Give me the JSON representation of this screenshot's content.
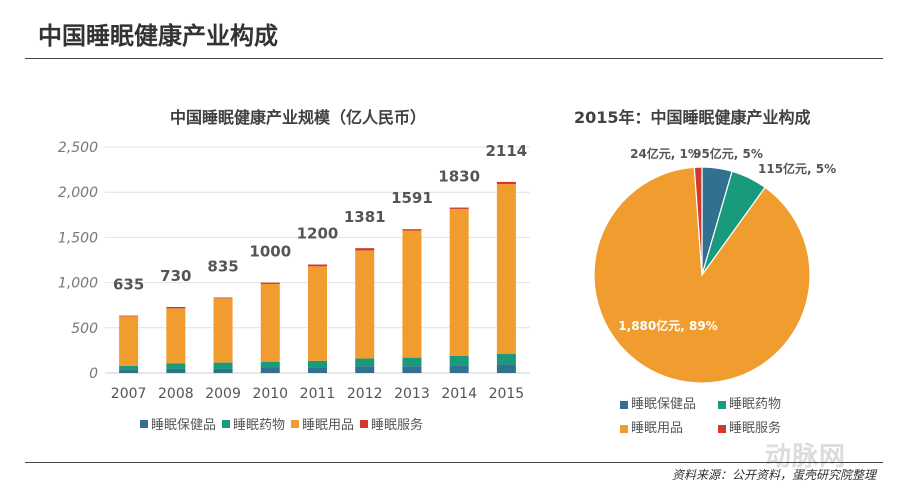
{
  "header": {
    "title": "中国睡眠健康产业构成"
  },
  "footer": {
    "source": "资料来源：公开资料，蛋壳研究院整理",
    "watermark": "动脉网"
  },
  "colors": {
    "health": "#31708f",
    "drug": "#1a9a7c",
    "products": "#f09c2e",
    "service": "#d0392b"
  },
  "chart_data": [
    {
      "type": "bar",
      "stacked": true,
      "title": "中国睡眠健康产业规模（亿人民币）",
      "categories": [
        "2007",
        "2008",
        "2009",
        "2010",
        "2011",
        "2012",
        "2013",
        "2014",
        "2015"
      ],
      "ylim": [
        0,
        2500
      ],
      "yticks": [
        "0",
        "500",
        "1,000",
        "1,500",
        "2,000",
        "2,500"
      ],
      "ytick_values": [
        0,
        500,
        1000,
        1500,
        2000,
        2500
      ],
      "grid": true,
      "legend_position": "bottom",
      "series": [
        {
          "name": "睡眠保健品",
          "color": "#31708f",
          "values": [
            40,
            45,
            45,
            55,
            60,
            75,
            75,
            85,
            95
          ]
        },
        {
          "name": "睡眠药物",
          "color": "#1a9a7c",
          "values": [
            40,
            60,
            70,
            70,
            75,
            85,
            95,
            105,
            115
          ]
        },
        {
          "name": "睡眠用品",
          "color": "#f09c2e",
          "values": [
            547,
            610,
            712,
            860,
            1045,
            1196,
            1406,
            1625,
            1880
          ]
        },
        {
          "name": "睡眠服务",
          "color": "#d0392b",
          "values": [
            8,
            15,
            8,
            15,
            20,
            25,
            15,
            15,
            24
          ]
        }
      ],
      "totals": [
        "635",
        "730",
        "835",
        "1000",
        "1200",
        "1381",
        "1591",
        "1830",
        "2114"
      ],
      "total_values": [
        635,
        730,
        835,
        1000,
        1200,
        1381,
        1591,
        1830,
        2114
      ]
    },
    {
      "type": "pie",
      "title": "2015年：中国睡眠健康产业构成",
      "legend_position": "bottom",
      "slices": [
        {
          "name": "睡眠保健品",
          "value": 95,
          "label": "95亿元, 5%",
          "color": "#31708f"
        },
        {
          "name": "睡眠药物",
          "value": 115,
          "label": "115亿元, 5%",
          "color": "#1a9a7c"
        },
        {
          "name": "睡眠用品",
          "value": 1880,
          "label": "1,880亿元, 89%",
          "color": "#f09c2e"
        },
        {
          "name": "睡眠服务",
          "value": 24,
          "label": "24亿元, 1%",
          "color": "#d0392b"
        }
      ]
    }
  ]
}
